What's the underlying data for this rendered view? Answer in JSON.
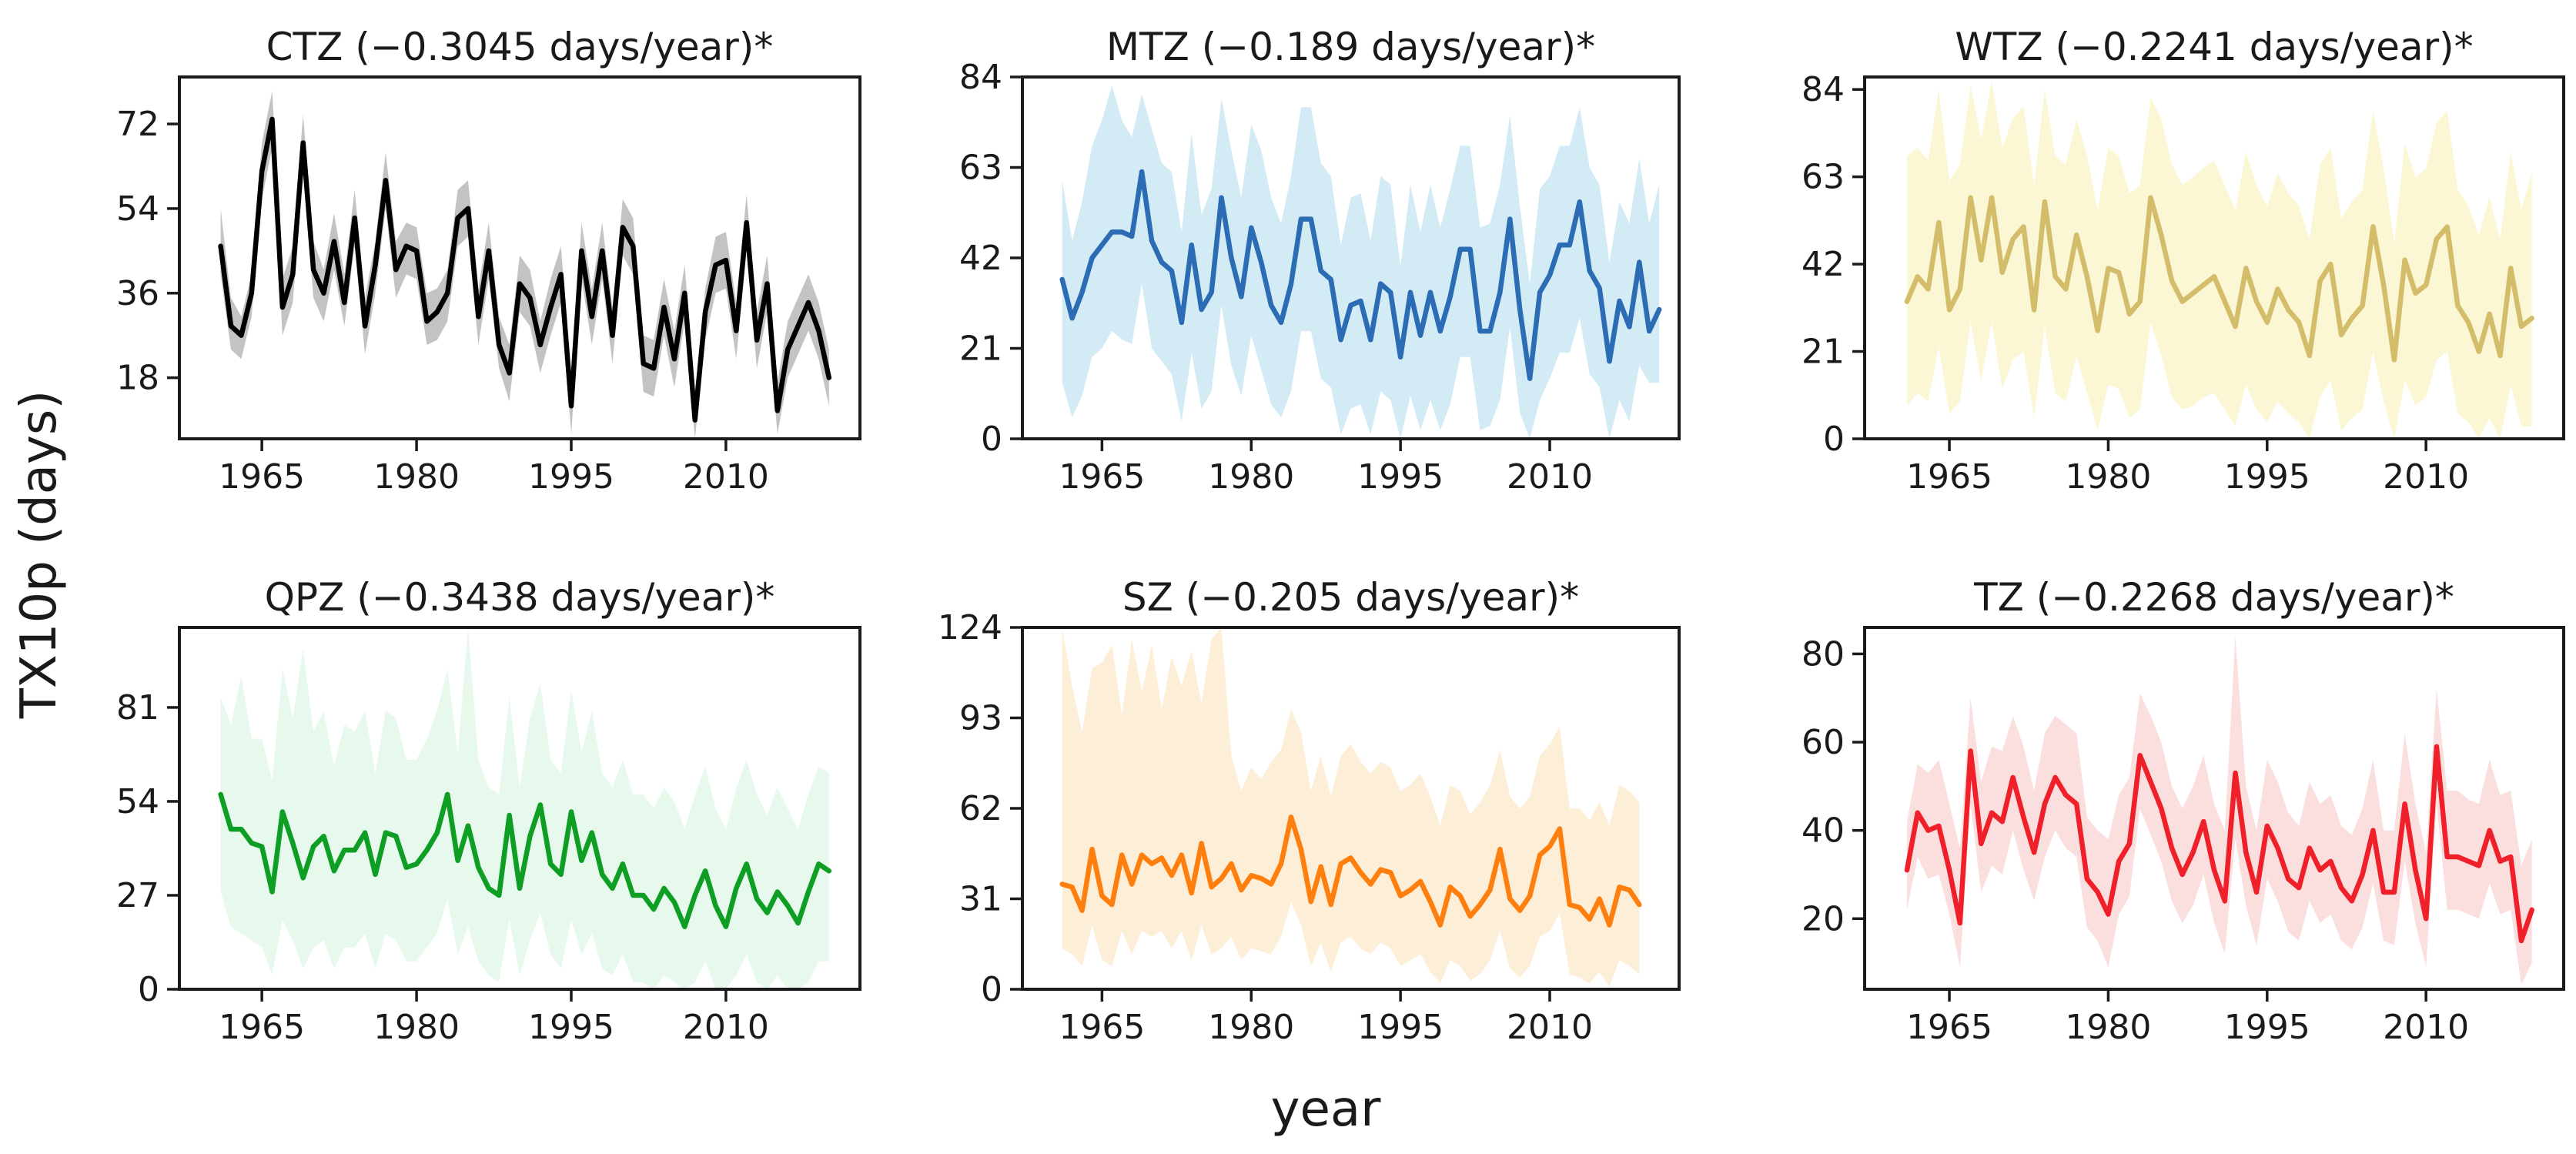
{
  "figure": {
    "ylabel": "TX10p (days)",
    "xlabel": "year"
  },
  "chart_data": [
    {
      "type": "line",
      "title": "CTZ (−0.3045 days/year)*",
      "color": "#000000",
      "band_color": "#bdbdbd",
      "x_start": 1961,
      "xticks": [
        1965,
        1980,
        1995,
        2010
      ],
      "xlim": [
        1957,
        2023
      ],
      "ylim": [
        5,
        82
      ],
      "yticks": [
        18,
        36,
        54,
        72
      ],
      "values": [
        46,
        29,
        27,
        36,
        62,
        73,
        33,
        40,
        68,
        41,
        36,
        47,
        34,
        52,
        29,
        42,
        60,
        41,
        46,
        45,
        30,
        32,
        36,
        52,
        54,
        31,
        45,
        25,
        19,
        38,
        35,
        25,
        33,
        40,
        12,
        45,
        31,
        45,
        27,
        50,
        46,
        21,
        20,
        33,
        22,
        36,
        9,
        32,
        42,
        43,
        28,
        51,
        26,
        38,
        11,
        24,
        29,
        34,
        28,
        18
      ],
      "band_upper": [
        54,
        35,
        31,
        40,
        68,
        79,
        39,
        46,
        74,
        47,
        41,
        53,
        40,
        58,
        35,
        47,
        66,
        47,
        51,
        50,
        36,
        37,
        41,
        58,
        60,
        37,
        51,
        31,
        25,
        44,
        41,
        30,
        39,
        46,
        18,
        51,
        37,
        51,
        33,
        56,
        52,
        27,
        26,
        39,
        28,
        42,
        15,
        37,
        48,
        49,
        34,
        57,
        32,
        44,
        17,
        30,
        35,
        40,
        34,
        24
      ],
      "band_lower": [
        40,
        24,
        22,
        31,
        56,
        67,
        27,
        34,
        62,
        35,
        30,
        41,
        29,
        46,
        23,
        36,
        54,
        35,
        40,
        39,
        25,
        26,
        30,
        46,
        48,
        25,
        39,
        20,
        13,
        32,
        29,
        19,
        27,
        34,
        6,
        39,
        25,
        39,
        21,
        44,
        40,
        15,
        14,
        27,
        16,
        30,
        4,
        26,
        36,
        37,
        22,
        45,
        20,
        32,
        6,
        18,
        23,
        28,
        22,
        12
      ]
    },
    {
      "type": "line",
      "title": "MTZ (−0.189 days/year)*",
      "color": "#2b6cb5",
      "band_color": "#cde9f4",
      "x_start": 1961,
      "xticks": [
        1965,
        1980,
        1995,
        2010
      ],
      "xlim": [
        1957,
        2023
      ],
      "ylim": [
        0,
        84
      ],
      "yticks": [
        0,
        21,
        42,
        63,
        84
      ],
      "values": [
        37,
        28,
        34,
        42,
        45,
        48,
        48,
        47,
        62,
        46,
        41,
        39,
        27,
        45,
        30,
        34,
        56,
        42,
        33,
        49,
        41,
        31,
        27,
        36,
        51,
        51,
        39,
        37,
        23,
        31,
        32,
        23,
        36,
        34,
        19,
        34,
        24,
        34,
        25,
        33,
        44,
        44,
        25,
        25,
        34,
        51,
        30,
        14,
        34,
        38,
        45,
        45,
        55,
        39,
        35,
        18,
        32,
        26,
        41,
        25,
        30
      ],
      "band_upper": [
        60,
        46,
        55,
        68,
        74,
        82,
        74,
        70,
        80,
        72,
        64,
        62,
        48,
        71,
        52,
        58,
        79,
        67,
        56,
        73,
        67,
        56,
        50,
        61,
        77,
        77,
        64,
        61,
        45,
        56,
        57,
        46,
        61,
        59,
        40,
        59,
        48,
        59,
        49,
        58,
        68,
        68,
        49,
        50,
        59,
        75,
        54,
        36,
        58,
        61,
        68,
        68,
        77,
        63,
        59,
        41,
        55,
        50,
        65,
        50,
        59
      ],
      "band_lower": [
        13,
        5,
        10,
        19,
        21,
        25,
        23,
        22,
        36,
        21,
        18,
        15,
        4,
        20,
        7,
        11,
        31,
        17,
        10,
        24,
        16,
        8,
        5,
        11,
        25,
        25,
        14,
        12,
        1,
        7,
        8,
        1,
        11,
        9,
        0,
        10,
        2,
        9,
        2,
        8,
        19,
        19,
        2,
        3,
        9,
        26,
        6,
        0,
        9,
        14,
        20,
        20,
        28,
        15,
        12,
        0,
        9,
        4,
        17,
        13,
        13
      ]
    },
    {
      "type": "line",
      "title": "WTZ (−0.2241 days/year)*",
      "color": "#d4bd6a",
      "band_color": "#fbf6cf",
      "x_start": 1961,
      "xticks": [
        1965,
        1980,
        1995,
        2010
      ],
      "xlim": [
        1957,
        2023
      ],
      "ylim": [
        0,
        87
      ],
      "yticks": [
        0,
        21,
        42,
        63,
        84
      ],
      "values": [
        33,
        39,
        36,
        52,
        31,
        36,
        58,
        43,
        58,
        40,
        48,
        51,
        31,
        57,
        39,
        36,
        49,
        39,
        26,
        41,
        40,
        30,
        33,
        58,
        49,
        38,
        33,
        35,
        37,
        39,
        33,
        27,
        41,
        33,
        28,
        36,
        31,
        28,
        20,
        38,
        42,
        25,
        29,
        32,
        51,
        37,
        19,
        43,
        35,
        37,
        48,
        51,
        32,
        28,
        21,
        30,
        20,
        41,
        27,
        29
      ],
      "band_upper": [
        68,
        70,
        67,
        84,
        62,
        66,
        85,
        72,
        86,
        70,
        77,
        80,
        61,
        84,
        68,
        66,
        77,
        68,
        55,
        70,
        68,
        59,
        61,
        82,
        77,
        66,
        61,
        63,
        65,
        67,
        61,
        55,
        69,
        61,
        56,
        64,
        59,
        56,
        48,
        66,
        70,
        53,
        57,
        60,
        79,
        65,
        47,
        71,
        63,
        65,
        76,
        79,
        60,
        56,
        49,
        58,
        48,
        69,
        55,
        64
      ],
      "band_lower": [
        8,
        11,
        9,
        22,
        6,
        9,
        28,
        14,
        28,
        12,
        19,
        21,
        5,
        27,
        11,
        9,
        20,
        11,
        2,
        13,
        12,
        5,
        7,
        28,
        20,
        10,
        7,
        8,
        10,
        11,
        7,
        3,
        13,
        7,
        4,
        9,
        6,
        4,
        0,
        10,
        14,
        2,
        5,
        7,
        21,
        9,
        0,
        14,
        8,
        10,
        19,
        21,
        6,
        4,
        0,
        5,
        0,
        13,
        3,
        3
      ]
    },
    {
      "type": "line",
      "title": "QPZ (−0.3438 days/year)*",
      "color": "#0f9e24",
      "band_color": "#e3f8ea",
      "x_start": 1961,
      "xticks": [
        1965,
        1980,
        1995,
        2010
      ],
      "xlim": [
        1957,
        2023
      ],
      "ylim": [
        0,
        104
      ],
      "yticks": [
        0,
        27,
        54,
        81
      ],
      "values": [
        56,
        46,
        46,
        42,
        41,
        28,
        51,
        42,
        32,
        41,
        44,
        34,
        40,
        40,
        45,
        33,
        45,
        44,
        35,
        36,
        40,
        45,
        56,
        37,
        47,
        35,
        29,
        27,
        50,
        29,
        44,
        53,
        36,
        33,
        51,
        37,
        45,
        33,
        29,
        36,
        27,
        27,
        23,
        29,
        25,
        18,
        27,
        34,
        24,
        18,
        29,
        36,
        26,
        22,
        28,
        24,
        19,
        28,
        36,
        34
      ],
      "band_upper": [
        84,
        76,
        90,
        72,
        72,
        60,
        92,
        78,
        98,
        74,
        80,
        64,
        76,
        74,
        80,
        62,
        80,
        78,
        66,
        66,
        72,
        80,
        92,
        68,
        106,
        66,
        58,
        56,
        84,
        58,
        78,
        88,
        66,
        62,
        86,
        68,
        80,
        62,
        58,
        66,
        56,
        56,
        52,
        58,
        54,
        46,
        56,
        64,
        52,
        46,
        58,
        66,
        56,
        50,
        58,
        52,
        46,
        56,
        64,
        62
      ],
      "band_lower": [
        28,
        18,
        16,
        14,
        12,
        4,
        20,
        14,
        6,
        12,
        14,
        6,
        12,
        12,
        16,
        6,
        16,
        14,
        8,
        8,
        12,
        16,
        26,
        10,
        18,
        8,
        4,
        2,
        20,
        4,
        14,
        22,
        10,
        6,
        20,
        10,
        16,
        6,
        4,
        10,
        2,
        2,
        0,
        4,
        2,
        0,
        2,
        8,
        0,
        0,
        4,
        10,
        2,
        0,
        4,
        0,
        0,
        2,
        8,
        8
      ]
    },
    {
      "type": "line",
      "title": "SZ (−0.205 days/year)*",
      "color": "#ff7f0e",
      "band_color": "#fdecd4",
      "x_start": 1961,
      "xticks": [
        1965,
        1980,
        1995,
        2010
      ],
      "xlim": [
        1957,
        2023
      ],
      "ylim": [
        0,
        124
      ],
      "yticks": [
        0,
        31,
        62,
        93,
        124
      ],
      "values": [
        36,
        35,
        27,
        48,
        32,
        29,
        46,
        36,
        46,
        43,
        45,
        39,
        46,
        33,
        50,
        35,
        38,
        43,
        34,
        39,
        38,
        36,
        43,
        59,
        48,
        30,
        42,
        29,
        43,
        45,
        40,
        36,
        41,
        40,
        32,
        34,
        37,
        30,
        22,
        35,
        32,
        25,
        29,
        34,
        48,
        31,
        27,
        32,
        46,
        49,
        55,
        29,
        28,
        24,
        31,
        22,
        35,
        34,
        29
      ],
      "band_upper": [
        124,
        104,
        88,
        110,
        112,
        118,
        94,
        120,
        102,
        118,
        96,
        114,
        104,
        116,
        98,
        120,
        124,
        80,
        68,
        76,
        72,
        78,
        82,
        96,
        88,
        68,
        80,
        66,
        80,
        84,
        78,
        74,
        78,
        76,
        68,
        70,
        74,
        66,
        56,
        70,
        68,
        60,
        64,
        70,
        82,
        66,
        62,
        66,
        80,
        84,
        90,
        62,
        62,
        58,
        64,
        56,
        70,
        68,
        64
      ],
      "band_lower": [
        14,
        12,
        8,
        22,
        10,
        8,
        20,
        12,
        20,
        18,
        20,
        14,
        20,
        10,
        22,
        12,
        14,
        18,
        10,
        14,
        13,
        12,
        18,
        30,
        22,
        8,
        16,
        6,
        16,
        18,
        14,
        12,
        16,
        14,
        8,
        10,
        12,
        6,
        2,
        10,
        8,
        3,
        5,
        10,
        20,
        7,
        4,
        8,
        18,
        20,
        26,
        5,
        4,
        2,
        6,
        1,
        10,
        8,
        5
      ]
    },
    {
      "type": "line",
      "title": "TZ (−0.2268 days/year)*",
      "color": "#f0202a",
      "band_color": "#fbdcdc",
      "x_start": 1961,
      "xticks": [
        1965,
        1980,
        1995,
        2010
      ],
      "xlim": [
        1957,
        2023
      ],
      "ylim": [
        4,
        86
      ],
      "yticks": [
        20,
        40,
        60,
        80
      ],
      "values": [
        31,
        44,
        40,
        41,
        31,
        19,
        58,
        37,
        44,
        42,
        52,
        43,
        35,
        46,
        52,
        48,
        46,
        29,
        26,
        21,
        33,
        37,
        57,
        51,
        45,
        36,
        30,
        35,
        42,
        31,
        24,
        53,
        35,
        26,
        41,
        36,
        29,
        27,
        36,
        31,
        33,
        27,
        24,
        30,
        40,
        26,
        26,
        46,
        31,
        20,
        59,
        34,
        34,
        33,
        32,
        40,
        33,
        34,
        15,
        22
      ],
      "band_upper": [
        42,
        55,
        53,
        56,
        46,
        36,
        70,
        51,
        59,
        58,
        66,
        59,
        49,
        62,
        66,
        64,
        62,
        43,
        40,
        38,
        48,
        52,
        71,
        66,
        60,
        50,
        45,
        50,
        57,
        46,
        40,
        84,
        50,
        40,
        56,
        51,
        44,
        41,
        51,
        46,
        48,
        41,
        39,
        45,
        56,
        40,
        40,
        62,
        46,
        35,
        72,
        49,
        49,
        47,
        46,
        56,
        48,
        49,
        32,
        38
      ],
      "band_lower": [
        22,
        34,
        29,
        30,
        21,
        9,
        46,
        26,
        32,
        30,
        40,
        31,
        24,
        34,
        40,
        36,
        34,
        18,
        15,
        9,
        21,
        25,
        45,
        39,
        33,
        24,
        19,
        23,
        30,
        19,
        12,
        38,
        23,
        14,
        29,
        24,
        17,
        15,
        24,
        19,
        21,
        15,
        13,
        18,
        28,
        15,
        14,
        33,
        19,
        9,
        46,
        22,
        22,
        21,
        20,
        28,
        21,
        22,
        5,
        10
      ]
    }
  ]
}
